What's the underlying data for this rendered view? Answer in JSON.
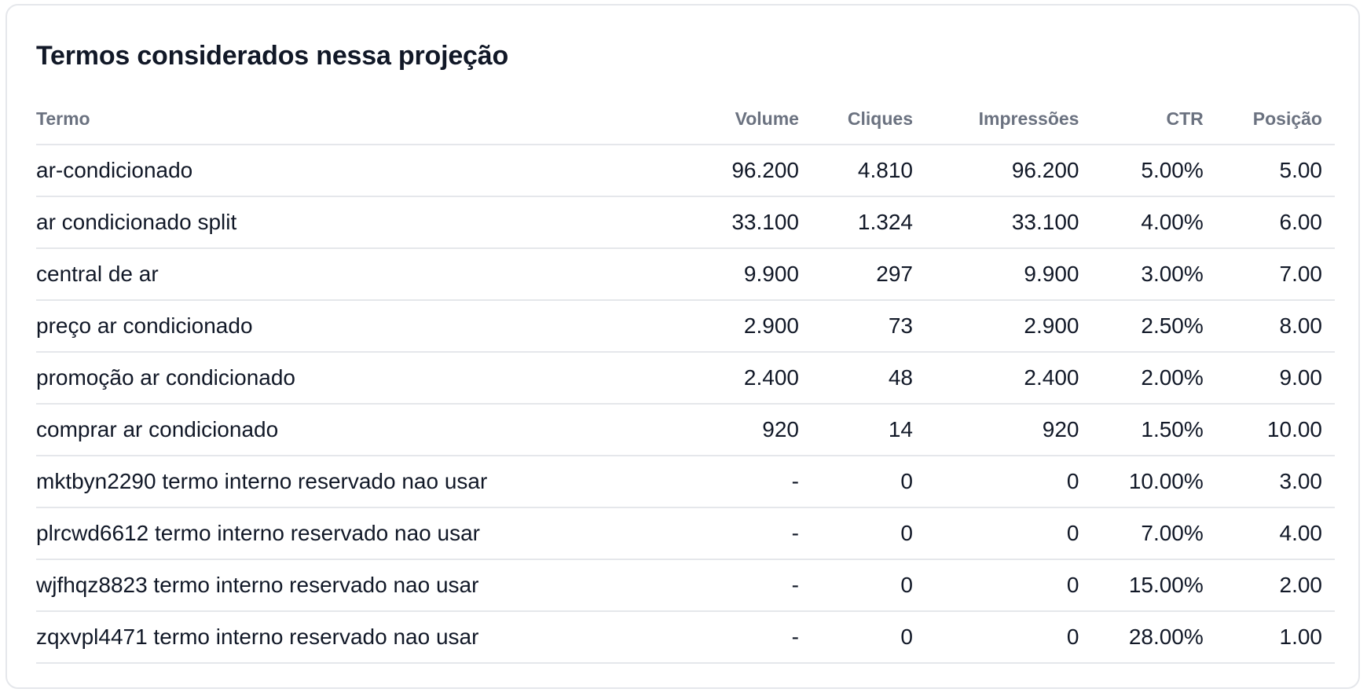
{
  "card": {
    "title": "Termos considerados nessa projeção"
  },
  "table": {
    "headers": {
      "term": "Termo",
      "volume": "Volume",
      "clicks": "Cliques",
      "impressions": "Impressões",
      "ctr": "CTR",
      "position": "Posição"
    },
    "rows": [
      {
        "term": "ar-condicionado",
        "volume": "96.200",
        "clicks": "4.810",
        "impressions": "96.200",
        "ctr": "5.00%",
        "position": "5.00"
      },
      {
        "term": "ar condicionado split",
        "volume": "33.100",
        "clicks": "1.324",
        "impressions": "33.100",
        "ctr": "4.00%",
        "position": "6.00"
      },
      {
        "term": "central de ar",
        "volume": "9.900",
        "clicks": "297",
        "impressions": "9.900",
        "ctr": "3.00%",
        "position": "7.00"
      },
      {
        "term": "preço ar condicionado",
        "volume": "2.900",
        "clicks": "73",
        "impressions": "2.900",
        "ctr": "2.50%",
        "position": "8.00"
      },
      {
        "term": "promoção ar condicionado",
        "volume": "2.400",
        "clicks": "48",
        "impressions": "2.400",
        "ctr": "2.00%",
        "position": "9.00"
      },
      {
        "term": "comprar ar condicionado",
        "volume": "920",
        "clicks": "14",
        "impressions": "920",
        "ctr": "1.50%",
        "position": "10.00"
      },
      {
        "term": "mktbyn2290 termo interno reservado nao usar",
        "volume": "-",
        "clicks": "0",
        "impressions": "0",
        "ctr": "10.00%",
        "position": "3.00"
      },
      {
        "term": "plrcwd6612 termo interno reservado nao usar",
        "volume": "-",
        "clicks": "0",
        "impressions": "0",
        "ctr": "7.00%",
        "position": "4.00"
      },
      {
        "term": "wjfhqz8823 termo interno reservado nao usar",
        "volume": "-",
        "clicks": "0",
        "impressions": "0",
        "ctr": "15.00%",
        "position": "2.00"
      },
      {
        "term": "zqxvpl4471 termo interno reservado nao usar",
        "volume": "-",
        "clicks": "0",
        "impressions": "0",
        "ctr": "28.00%",
        "position": "1.00"
      }
    ]
  },
  "colors": {
    "title": "#111827",
    "header_text": "#6b7280",
    "cell_text": "#111827",
    "border": "#e5e7eb",
    "background": "#ffffff"
  }
}
